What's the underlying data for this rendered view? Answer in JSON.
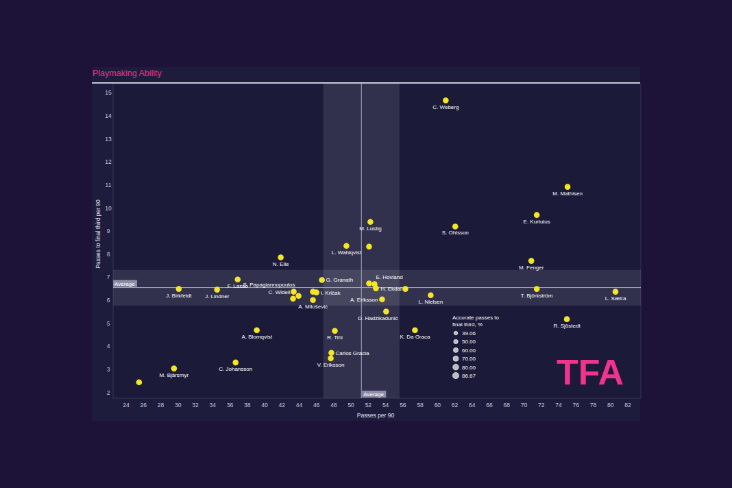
{
  "chart_data": {
    "type": "scatter",
    "title": "Playmaking Ability",
    "x_label": "Passes per 90",
    "y_label": "Passes to final third per 90",
    "xlim": [
      22.5,
      83.5
    ],
    "ylim": [
      1.75,
      15.4
    ],
    "xticks": [
      24,
      26,
      28,
      30,
      32,
      34,
      36,
      38,
      40,
      42,
      44,
      46,
      48,
      50,
      52,
      54,
      56,
      58,
      60,
      62,
      64,
      66,
      68,
      70,
      72,
      74,
      76,
      78,
      80,
      82
    ],
    "yticks": [
      2,
      3,
      4,
      5,
      6,
      7,
      8,
      9,
      10,
      11,
      12,
      13,
      14,
      15
    ],
    "grid": false,
    "color": "#f4e525",
    "marker": "circle",
    "point_labels": [
      "C. Weberg",
      "M. Mathisen",
      "E. Kurtulus",
      "S. Ohlsson",
      "M. Lustig",
      "L. Wahlqvist",
      null,
      "N. Eile",
      "M. Fenger",
      "F. Lasso",
      "G. Granath",
      "E. Hovland",
      null,
      "H. Ekdal",
      null,
      "J. Birkfeldt",
      "J. Lindner",
      "T. Björkström",
      "L. Sætra",
      "S. Papagiannopoulos",
      "C. Widell",
      null,
      null,
      "I. Kričak",
      "A. Milošević",
      "A. Eriksson",
      "L. Nielsen",
      "D. Hadžikadunić",
      "R. Sjöstedt",
      "A. Blomqvist",
      "R. Tihi",
      "K. Da Graca",
      "Carlos Gracia",
      "V. Eriksson",
      "C. Johansson",
      "M. Bjärsmyr",
      null
    ],
    "x": [
      60.95,
      75.03,
      71.47,
      62.05,
      52.24,
      49.47,
      52.09,
      41.88,
      70.84,
      36.9,
      46.63,
      52.72,
      52.09,
      52.88,
      56.28,
      30.09,
      34.52,
      71.47,
      80.57,
      43.38,
      43.3,
      43.94,
      45.6,
      46.0,
      45.6,
      53.59,
      59.21,
      54.06,
      74.95,
      39.11,
      48.13,
      57.39,
      47.73,
      47.66,
      36.66,
      29.54,
      25.5
    ],
    "values": [
      14.67,
      10.92,
      9.7,
      9.2,
      9.4,
      8.36,
      8.33,
      7.86,
      7.71,
      6.9,
      6.88,
      6.7,
      6.73,
      6.52,
      6.49,
      6.49,
      6.46,
      6.49,
      6.37,
      6.37,
      6.07,
      6.19,
      6.37,
      6.34,
      6.01,
      6.04,
      6.22,
      5.51,
      5.18,
      4.7,
      4.67,
      4.7,
      3.72,
      3.48,
      3.3,
      3.04,
      2.44
    ],
    "average_x": {
      "value": 51.2,
      "label": "Average",
      "band": [
        46.8,
        55.6
      ]
    },
    "average_y": {
      "value": 6.55,
      "label": "Average",
      "band": [
        5.77,
        7.32
      ]
    },
    "size_legend": {
      "title": "Accurate passes to final third, %",
      "ticks": [
        {
          "value": 39.06,
          "label": "39.06"
        },
        {
          "value": 50,
          "label": "50.00"
        },
        {
          "value": 60,
          "label": "60.00"
        },
        {
          "value": 70,
          "label": "70.00"
        },
        {
          "value": 80,
          "label": "80.00"
        },
        {
          "value": 86.67,
          "label": "86.67"
        }
      ]
    },
    "watermark": "TFA"
  }
}
